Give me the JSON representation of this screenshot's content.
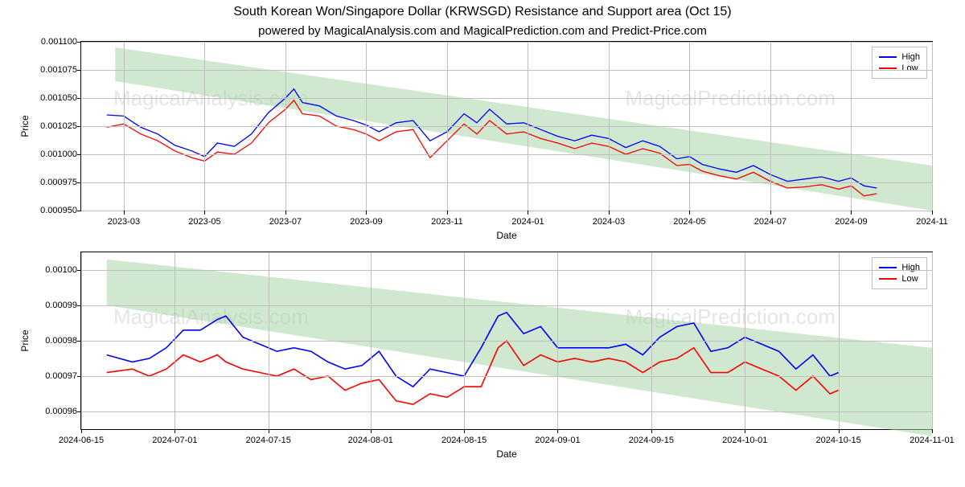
{
  "title": "South Korean Won/Singapore Dollar (KRWSGD) Resistance and Support area (Oct 15)",
  "subtitle": "powered by MagicalAnalysis.com and MagicalPrediction.com and Predict-Price.com",
  "legend": {
    "high": "High",
    "low": "Low"
  },
  "colors": {
    "high": "#0000ff",
    "low": "#ff0000",
    "band": "#a8d5a8",
    "band_opacity": 0.55,
    "grid": "#bfbfbf",
    "border": "#000000",
    "bg": "#ffffff",
    "watermark": "rgba(180,180,180,0.35)"
  },
  "watermarks": {
    "top_left": "MagicalAnalysis.com",
    "top_right": "MagicalPrediction.com",
    "bottom_left": "MagicalAnalysis.com",
    "bottom_right": "MagicalPrediction.com"
  },
  "chart_top": {
    "type": "line",
    "x_label": "Date",
    "y_label": "Price",
    "y_ticks": [
      "0.000950",
      "0.000975",
      "0.001000",
      "0.001025",
      "0.001050",
      "0.001075",
      "0.001100"
    ],
    "y_values": [
      0.00095,
      0.000975,
      0.001,
      0.001025,
      0.00105,
      0.001075,
      0.0011
    ],
    "ylim": [
      0.00095,
      0.0011
    ],
    "x_ticks": [
      "2023-03",
      "2023-05",
      "2023-07",
      "2023-09",
      "2023-11",
      "2024-01",
      "2024-03",
      "2024-05",
      "2024-07",
      "2024-09",
      "2024-11"
    ],
    "x_positions": [
      0.05,
      0.145,
      0.24,
      0.335,
      0.43,
      0.525,
      0.62,
      0.715,
      0.81,
      0.905,
      1.0
    ],
    "band": {
      "top_start": 0.001095,
      "top_end": 0.00099,
      "bottom_start": 0.001065,
      "bottom_end": 0.00095,
      "x_start": 0.04,
      "x_end": 1.0
    },
    "series_high": [
      [
        0.03,
        0.001035
      ],
      [
        0.05,
        0.001034
      ],
      [
        0.07,
        0.001024
      ],
      [
        0.09,
        0.001018
      ],
      [
        0.11,
        0.001008
      ],
      [
        0.13,
        0.001003
      ],
      [
        0.145,
        0.000998
      ],
      [
        0.16,
        0.00101
      ],
      [
        0.18,
        0.001007
      ],
      [
        0.2,
        0.001018
      ],
      [
        0.22,
        0.001037
      ],
      [
        0.24,
        0.00105
      ],
      [
        0.25,
        0.001058
      ],
      [
        0.26,
        0.001046
      ],
      [
        0.28,
        0.001043
      ],
      [
        0.3,
        0.001034
      ],
      [
        0.32,
        0.00103
      ],
      [
        0.335,
        0.001026
      ],
      [
        0.35,
        0.00102
      ],
      [
        0.37,
        0.001028
      ],
      [
        0.39,
        0.00103
      ],
      [
        0.41,
        0.001012
      ],
      [
        0.43,
        0.00102
      ],
      [
        0.45,
        0.001036
      ],
      [
        0.465,
        0.001028
      ],
      [
        0.48,
        0.00104
      ],
      [
        0.5,
        0.001027
      ],
      [
        0.52,
        0.001028
      ],
      [
        0.54,
        0.001022
      ],
      [
        0.56,
        0.001016
      ],
      [
        0.58,
        0.001012
      ],
      [
        0.6,
        0.001017
      ],
      [
        0.62,
        0.001014
      ],
      [
        0.64,
        0.001006
      ],
      [
        0.66,
        0.001012
      ],
      [
        0.68,
        0.001007
      ],
      [
        0.7,
        0.000996
      ],
      [
        0.715,
        0.000998
      ],
      [
        0.73,
        0.000991
      ],
      [
        0.75,
        0.000987
      ],
      [
        0.77,
        0.000984
      ],
      [
        0.79,
        0.00099
      ],
      [
        0.81,
        0.000982
      ],
      [
        0.83,
        0.000976
      ],
      [
        0.85,
        0.000978
      ],
      [
        0.87,
        0.00098
      ],
      [
        0.89,
        0.000976
      ],
      [
        0.905,
        0.000979
      ],
      [
        0.92,
        0.000972
      ],
      [
        0.935,
        0.00097
      ]
    ],
    "series_low": [
      [
        0.03,
        0.001024
      ],
      [
        0.05,
        0.001027
      ],
      [
        0.07,
        0.001018
      ],
      [
        0.09,
        0.001012
      ],
      [
        0.11,
        0.001003
      ],
      [
        0.13,
        0.000997
      ],
      [
        0.145,
        0.000994
      ],
      [
        0.16,
        0.001002
      ],
      [
        0.18,
        0.001
      ],
      [
        0.2,
        0.00101
      ],
      [
        0.22,
        0.001028
      ],
      [
        0.24,
        0.00104
      ],
      [
        0.25,
        0.001048
      ],
      [
        0.26,
        0.001036
      ],
      [
        0.28,
        0.001034
      ],
      [
        0.3,
        0.001025
      ],
      [
        0.32,
        0.001022
      ],
      [
        0.335,
        0.001018
      ],
      [
        0.35,
        0.001012
      ],
      [
        0.37,
        0.00102
      ],
      [
        0.39,
        0.001022
      ],
      [
        0.41,
        0.000997
      ],
      [
        0.43,
        0.001012
      ],
      [
        0.45,
        0.001027
      ],
      [
        0.465,
        0.001018
      ],
      [
        0.48,
        0.00103
      ],
      [
        0.5,
        0.001018
      ],
      [
        0.52,
        0.00102
      ],
      [
        0.54,
        0.001014
      ],
      [
        0.56,
        0.00101
      ],
      [
        0.58,
        0.001005
      ],
      [
        0.6,
        0.00101
      ],
      [
        0.62,
        0.001007
      ],
      [
        0.64,
        0.001
      ],
      [
        0.66,
        0.001005
      ],
      [
        0.68,
        0.001001
      ],
      [
        0.7,
        0.00099
      ],
      [
        0.715,
        0.000991
      ],
      [
        0.73,
        0.000985
      ],
      [
        0.75,
        0.000981
      ],
      [
        0.77,
        0.000978
      ],
      [
        0.79,
        0.000984
      ],
      [
        0.81,
        0.000976
      ],
      [
        0.83,
        0.00097
      ],
      [
        0.85,
        0.000971
      ],
      [
        0.87,
        0.000973
      ],
      [
        0.89,
        0.000969
      ],
      [
        0.905,
        0.000972
      ],
      [
        0.92,
        0.000963
      ],
      [
        0.935,
        0.000965
      ]
    ],
    "line_width": 1.3
  },
  "chart_bottom": {
    "type": "line",
    "x_label": "Date",
    "y_label": "Price",
    "y_ticks": [
      "0.00096",
      "0.00097",
      "0.00098",
      "0.00099",
      "0.00100"
    ],
    "y_values": [
      0.00096,
      0.00097,
      0.00098,
      0.00099,
      0.001
    ],
    "ylim": [
      0.000955,
      0.001005
    ],
    "x_ticks": [
      "2024-06-15",
      "2024-07-01",
      "2024-07-15",
      "2024-08-01",
      "2024-08-15",
      "2024-09-01",
      "2024-09-15",
      "2024-10-01",
      "2024-10-15",
      "2024-11-01"
    ],
    "x_positions": [
      0.0,
      0.11,
      0.22,
      0.34,
      0.45,
      0.56,
      0.67,
      0.78,
      0.89,
      1.0
    ],
    "band": {
      "top_start": 0.001003,
      "top_end": 0.000978,
      "bottom_start": 0.00099,
      "bottom_end": 0.000953,
      "x_start": 0.03,
      "x_end": 1.0
    },
    "series_high": [
      [
        0.03,
        0.000976
      ],
      [
        0.06,
        0.000974
      ],
      [
        0.08,
        0.000975
      ],
      [
        0.1,
        0.000978
      ],
      [
        0.12,
        0.000983
      ],
      [
        0.14,
        0.000983
      ],
      [
        0.16,
        0.000986
      ],
      [
        0.17,
        0.000987
      ],
      [
        0.19,
        0.000981
      ],
      [
        0.21,
        0.000979
      ],
      [
        0.23,
        0.000977
      ],
      [
        0.25,
        0.000978
      ],
      [
        0.27,
        0.000977
      ],
      [
        0.29,
        0.000974
      ],
      [
        0.31,
        0.000972
      ],
      [
        0.33,
        0.000973
      ],
      [
        0.35,
        0.000977
      ],
      [
        0.37,
        0.00097
      ],
      [
        0.39,
        0.000967
      ],
      [
        0.41,
        0.000972
      ],
      [
        0.43,
        0.000971
      ],
      [
        0.45,
        0.00097
      ],
      [
        0.47,
        0.000978
      ],
      [
        0.49,
        0.000987
      ],
      [
        0.5,
        0.000988
      ],
      [
        0.52,
        0.000982
      ],
      [
        0.54,
        0.000984
      ],
      [
        0.56,
        0.000978
      ],
      [
        0.58,
        0.000978
      ],
      [
        0.6,
        0.000978
      ],
      [
        0.62,
        0.000978
      ],
      [
        0.64,
        0.000979
      ],
      [
        0.66,
        0.000976
      ],
      [
        0.68,
        0.000981
      ],
      [
        0.7,
        0.000984
      ],
      [
        0.72,
        0.000985
      ],
      [
        0.74,
        0.000977
      ],
      [
        0.76,
        0.000978
      ],
      [
        0.78,
        0.000981
      ],
      [
        0.8,
        0.000979
      ],
      [
        0.82,
        0.000977
      ],
      [
        0.84,
        0.000972
      ],
      [
        0.86,
        0.000976
      ],
      [
        0.88,
        0.00097
      ],
      [
        0.89,
        0.000971
      ]
    ],
    "series_low": [
      [
        0.03,
        0.000971
      ],
      [
        0.06,
        0.000972
      ],
      [
        0.08,
        0.00097
      ],
      [
        0.1,
        0.000972
      ],
      [
        0.12,
        0.000976
      ],
      [
        0.14,
        0.000974
      ],
      [
        0.16,
        0.000976
      ],
      [
        0.17,
        0.000974
      ],
      [
        0.19,
        0.000972
      ],
      [
        0.21,
        0.000971
      ],
      [
        0.23,
        0.00097
      ],
      [
        0.25,
        0.000972
      ],
      [
        0.27,
        0.000969
      ],
      [
        0.29,
        0.00097
      ],
      [
        0.31,
        0.000966
      ],
      [
        0.33,
        0.000968
      ],
      [
        0.35,
        0.000969
      ],
      [
        0.37,
        0.000963
      ],
      [
        0.39,
        0.000962
      ],
      [
        0.41,
        0.000965
      ],
      [
        0.43,
        0.000964
      ],
      [
        0.45,
        0.000967
      ],
      [
        0.47,
        0.000967
      ],
      [
        0.49,
        0.000978
      ],
      [
        0.5,
        0.00098
      ],
      [
        0.52,
        0.000973
      ],
      [
        0.54,
        0.000976
      ],
      [
        0.56,
        0.000974
      ],
      [
        0.58,
        0.000975
      ],
      [
        0.6,
        0.000974
      ],
      [
        0.62,
        0.000975
      ],
      [
        0.64,
        0.000974
      ],
      [
        0.66,
        0.000971
      ],
      [
        0.68,
        0.000974
      ],
      [
        0.7,
        0.000975
      ],
      [
        0.72,
        0.000978
      ],
      [
        0.74,
        0.000971
      ],
      [
        0.76,
        0.000971
      ],
      [
        0.78,
        0.000974
      ],
      [
        0.8,
        0.000972
      ],
      [
        0.82,
        0.00097
      ],
      [
        0.84,
        0.000966
      ],
      [
        0.86,
        0.00097
      ],
      [
        0.88,
        0.000965
      ],
      [
        0.89,
        0.000966
      ]
    ],
    "line_width": 1.6
  }
}
